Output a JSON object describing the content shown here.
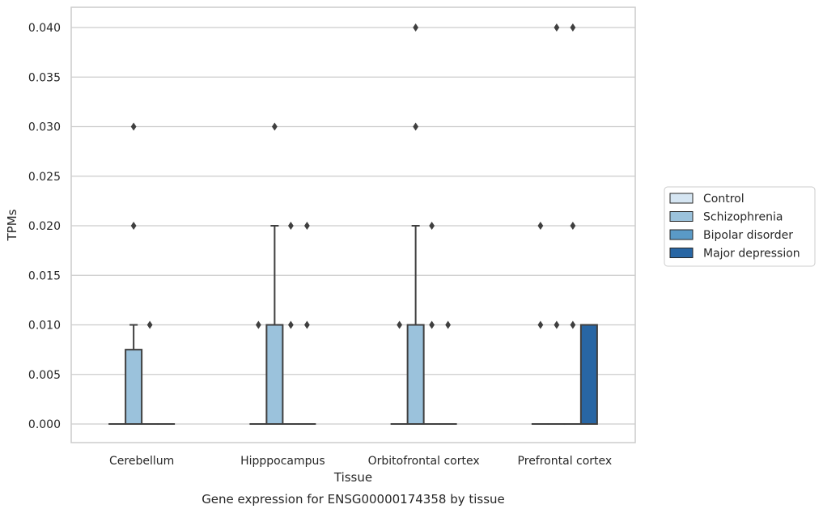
{
  "chart_data": {
    "type": "box",
    "title": "",
    "caption": "Gene expression for ENSG00000174358 by tissue",
    "xlabel": "Tissue",
    "ylabel": "TPMs",
    "ylim": [
      -0.002,
      0.042
    ],
    "yticks": [
      0.0,
      0.005,
      0.01,
      0.015,
      0.02,
      0.025,
      0.03,
      0.035,
      0.04
    ],
    "ytick_labels": [
      "0.000",
      "0.005",
      "0.010",
      "0.015",
      "0.020",
      "0.025",
      "0.030",
      "0.035",
      "0.040"
    ],
    "grid": "horizontal",
    "legend_position": "right",
    "categories": [
      "Cerebellum",
      "Hipppocampus",
      "Orbitofrontal cortex",
      "Prefrontal cortex"
    ],
    "series": [
      {
        "name": "Control",
        "color": "#d5e5f2",
        "boxes": [
          {
            "q1": 0,
            "median": 0,
            "q3": 0,
            "whisker_low": 0,
            "whisker_high": 0,
            "outliers": []
          },
          {
            "q1": 0,
            "median": 0,
            "q3": 0,
            "whisker_low": 0,
            "whisker_high": 0,
            "outliers": [
              0.01
            ]
          },
          {
            "q1": 0,
            "median": 0,
            "q3": 0,
            "whisker_low": 0,
            "whisker_high": 0,
            "outliers": [
              0.01
            ]
          },
          {
            "q1": 0,
            "median": 0,
            "q3": 0,
            "whisker_low": 0,
            "whisker_high": 0,
            "outliers": [
              0.01,
              0.02
            ]
          }
        ]
      },
      {
        "name": "Schizophrenia",
        "color": "#9bc2dc",
        "boxes": [
          {
            "q1": 0,
            "median": 0,
            "q3": 0.0075,
            "whisker_low": 0,
            "whisker_high": 0.01,
            "outliers": [
              0.02,
              0.03
            ]
          },
          {
            "q1": 0,
            "median": 0,
            "q3": 0.01,
            "whisker_low": 0,
            "whisker_high": 0.02,
            "outliers": [
              0.03
            ]
          },
          {
            "q1": 0,
            "median": 0,
            "q3": 0.01,
            "whisker_low": 0,
            "whisker_high": 0.02,
            "outliers": [
              0.03,
              0.04
            ]
          },
          {
            "q1": 0,
            "median": 0,
            "q3": 0,
            "whisker_low": 0,
            "whisker_high": 0,
            "outliers": [
              0.01,
              0.04
            ]
          }
        ]
      },
      {
        "name": "Bipolar disorder",
        "color": "#5a9ac6",
        "boxes": [
          {
            "q1": 0,
            "median": 0,
            "q3": 0,
            "whisker_low": 0,
            "whisker_high": 0,
            "outliers": [
              0.01
            ]
          },
          {
            "q1": 0,
            "median": 0,
            "q3": 0,
            "whisker_low": 0,
            "whisker_high": 0,
            "outliers": [
              0.01,
              0.02
            ]
          },
          {
            "q1": 0,
            "median": 0,
            "q3": 0,
            "whisker_low": 0,
            "whisker_high": 0,
            "outliers": [
              0.01,
              0.02
            ]
          },
          {
            "q1": 0,
            "median": 0,
            "q3": 0,
            "whisker_low": 0,
            "whisker_high": 0,
            "outliers": [
              0.01,
              0.02,
              0.04
            ]
          }
        ]
      },
      {
        "name": "Major depression",
        "color": "#2866a4",
        "boxes": [
          {
            "q1": 0,
            "median": 0,
            "q3": 0,
            "whisker_low": 0,
            "whisker_high": 0,
            "outliers": []
          },
          {
            "q1": 0,
            "median": 0,
            "q3": 0,
            "whisker_low": 0,
            "whisker_high": 0,
            "outliers": [
              0.01,
              0.02
            ]
          },
          {
            "q1": 0,
            "median": 0,
            "q3": 0,
            "whisker_low": 0,
            "whisker_high": 0,
            "outliers": [
              0.01
            ]
          },
          {
            "q1": 0,
            "median": 0,
            "q3": 0.01,
            "whisker_low": 0,
            "whisker_high": 0.01,
            "outliers": []
          }
        ]
      }
    ]
  }
}
